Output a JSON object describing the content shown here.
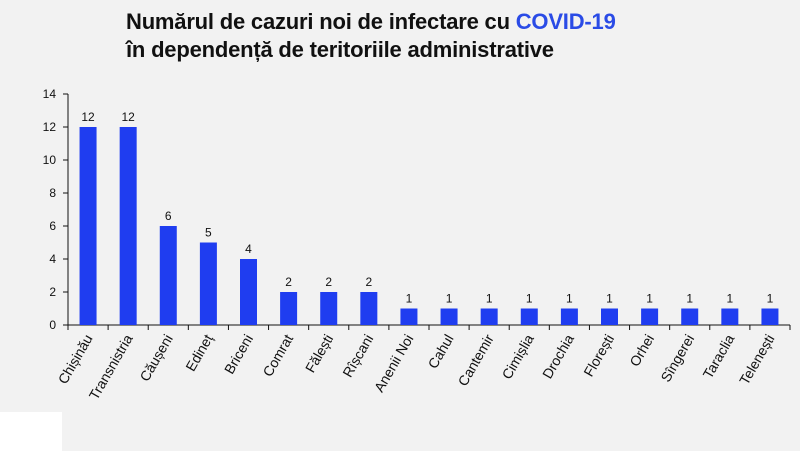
{
  "title": {
    "line1_prefix": "Numărul de cazuri noi de infectare cu ",
    "line1_highlight": "COVID-19",
    "line2": "în dependență de teritoriile administrative",
    "highlight_color": "#2a4be6"
  },
  "chart_data": {
    "type": "bar",
    "title": "Numărul de cazuri noi de infectare cu COVID-19 în dependență de teritoriile administrative",
    "categories": [
      "Chișinău",
      "Transnistria",
      "Căușeni",
      "Edineț",
      "Briceni",
      "Comrat",
      "Fălești",
      "Rîșcani",
      "Anenii Noi",
      "Cahul",
      "Cantemir",
      "Cimișlia",
      "Drochia",
      "Florești",
      "Orhei",
      "Sîngerei",
      "Taraclia",
      "Telenești"
    ],
    "values": [
      12,
      12,
      6,
      5,
      4,
      2,
      2,
      2,
      1,
      1,
      1,
      1,
      1,
      1,
      1,
      1,
      1,
      1
    ],
    "ylabel": "",
    "xlabel": "",
    "ylim": [
      0,
      14
    ],
    "yticks": [
      0,
      2,
      4,
      6,
      8,
      10,
      12,
      14
    ],
    "bar_color": "#1f3df0",
    "grid": false,
    "legend": "none"
  }
}
